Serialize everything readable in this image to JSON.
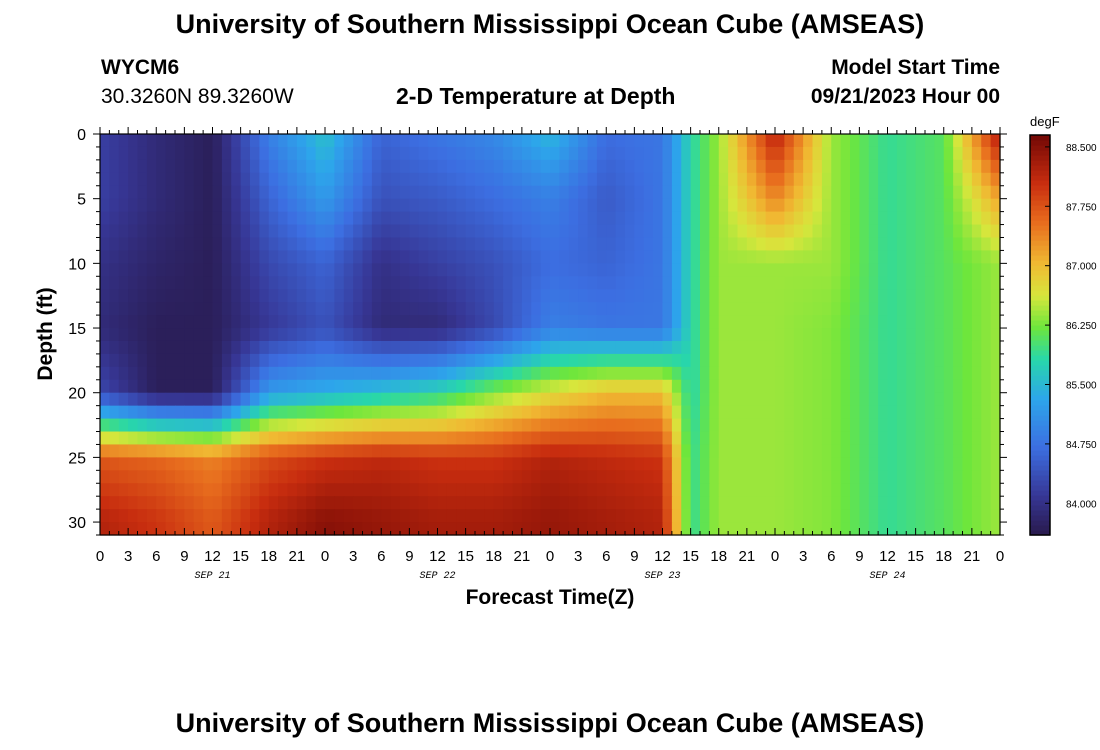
{
  "page": {
    "title": "University of Southern Mississippi Ocean Cube (AMSEAS)",
    "title_repeat": "University of Southern Mississippi Ocean Cube (AMSEAS)",
    "station": "WYCM6",
    "coordinates": "30.3260N  89.3260W",
    "subtitle": "2-D Temperature at Depth",
    "model_start_label": "Model Start Time",
    "model_start_value": "09/21/2023 Hour 00"
  },
  "chart_data": {
    "type": "heatmap",
    "title": "2-D Temperature at Depth",
    "xlabel": "Forecast Time(Z)",
    "ylabel": "Depth (ft)",
    "x_unit_note": "hours from model start, 3-hour steps over 4 days",
    "x_range": [
      0,
      96
    ],
    "y_range": [
      0,
      31
    ],
    "x_tick_labels": [
      "0",
      "3",
      "6",
      "9",
      "12",
      "15",
      "18",
      "21",
      "0",
      "3",
      "6",
      "9",
      "12",
      "15",
      "18",
      "21",
      "0",
      "3",
      "6",
      "9",
      "12",
      "15",
      "18",
      "21",
      "0",
      "3",
      "6",
      "9",
      "12",
      "15",
      "18",
      "21",
      "0"
    ],
    "y_ticks": [
      0,
      5,
      10,
      15,
      20,
      25,
      30
    ],
    "date_labels": [
      {
        "label": "SEP 21",
        "hour": 12
      },
      {
        "label": "SEP 22",
        "hour": 36
      },
      {
        "label": "SEP 23",
        "hour": 60
      },
      {
        "label": "SEP 24",
        "hour": 84
      }
    ],
    "colorbar": {
      "unit": "degF",
      "min": 83.6,
      "max": 88.65,
      "tick_labels": [
        "88.500",
        "87.750",
        "87.000",
        "86.250",
        "85.500",
        "84.750",
        "84.000"
      ],
      "tick_values": [
        88.5,
        87.75,
        87.0,
        86.25,
        85.5,
        84.75,
        84.0
      ]
    },
    "grid_approx": {
      "x_hours": [
        0,
        6,
        12,
        18,
        24,
        30,
        36,
        42,
        48,
        54,
        60,
        63,
        66,
        72,
        78,
        84,
        90,
        96
      ],
      "depths_ft": [
        0,
        5,
        10,
        15,
        20,
        25,
        30
      ],
      "temperature_degF": [
        [
          84.2,
          83.9,
          83.7,
          84.9,
          85.6,
          84.6,
          84.8,
          85.0,
          85.5,
          84.7,
          84.8,
          85.8,
          86.4,
          88.2,
          86.4,
          85.9,
          86.1,
          88.3
        ],
        [
          84.2,
          83.9,
          83.7,
          84.6,
          85.2,
          84.4,
          84.5,
          84.7,
          84.9,
          84.5,
          84.8,
          85.8,
          86.4,
          87.4,
          86.4,
          85.9,
          86.1,
          87.2
        ],
        [
          84.0,
          83.8,
          83.7,
          84.3,
          84.6,
          84.0,
          84.2,
          84.4,
          84.7,
          84.6,
          84.8,
          85.8,
          86.4,
          86.4,
          86.4,
          85.9,
          86.1,
          86.4
        ],
        [
          83.9,
          83.7,
          83.7,
          84.1,
          84.4,
          83.9,
          83.9,
          84.3,
          84.9,
          84.8,
          84.8,
          85.8,
          86.4,
          86.4,
          86.3,
          85.9,
          86.1,
          86.4
        ],
        [
          84.3,
          83.7,
          83.7,
          85.2,
          85.4,
          85.6,
          85.8,
          86.3,
          86.7,
          87.0,
          87.0,
          85.8,
          86.4,
          86.4,
          86.3,
          85.9,
          86.1,
          86.4
        ],
        [
          87.7,
          87.6,
          87.4,
          87.8,
          88.0,
          88.1,
          88.0,
          88.0,
          88.2,
          88.1,
          88.0,
          85.9,
          86.4,
          86.4,
          86.3,
          85.9,
          86.1,
          86.4
        ],
        [
          88.2,
          88.0,
          87.7,
          88.2,
          88.5,
          88.4,
          88.3,
          88.3,
          88.4,
          88.3,
          88.2,
          85.9,
          86.4,
          86.4,
          86.3,
          85.9,
          86.1,
          86.4
        ]
      ]
    }
  }
}
